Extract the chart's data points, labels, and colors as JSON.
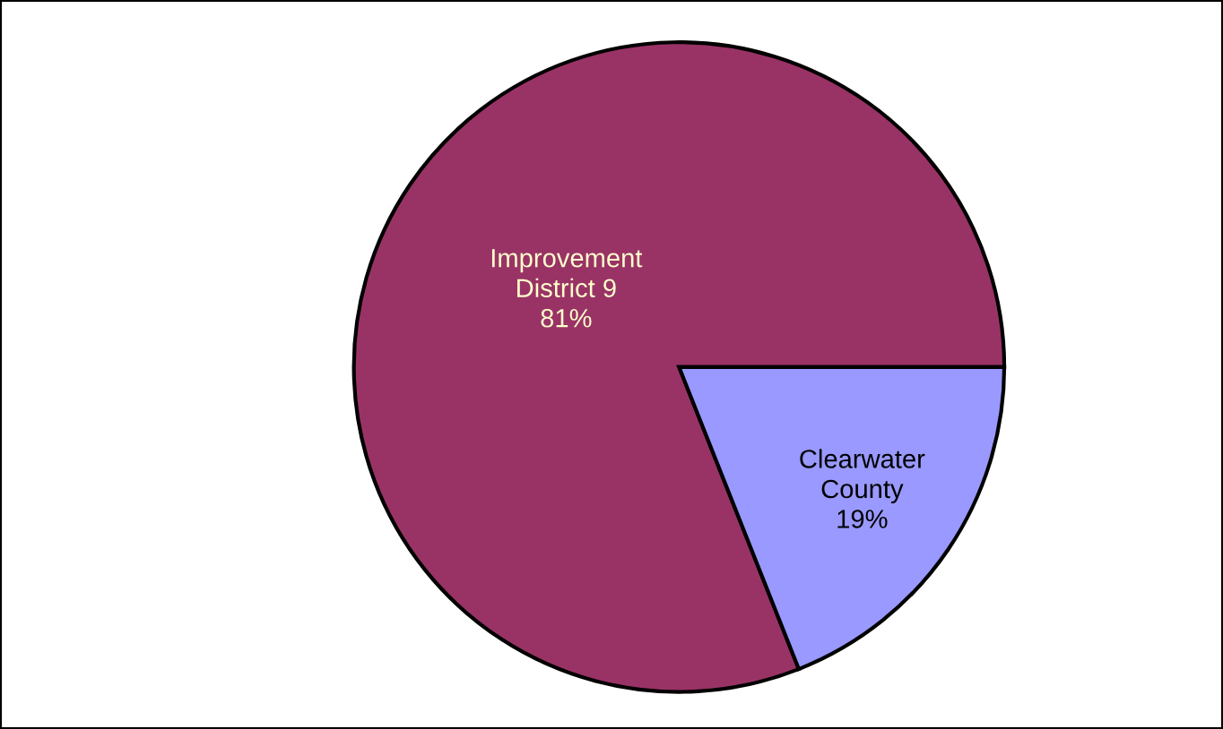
{
  "chart_data": {
    "type": "pie",
    "categories": [
      "Improvement District 9",
      "Clearwater County"
    ],
    "values": [
      81,
      19
    ],
    "colors": [
      "#993366",
      "#9999ff"
    ],
    "value_labels": [
      "81%",
      "19%"
    ]
  }
}
